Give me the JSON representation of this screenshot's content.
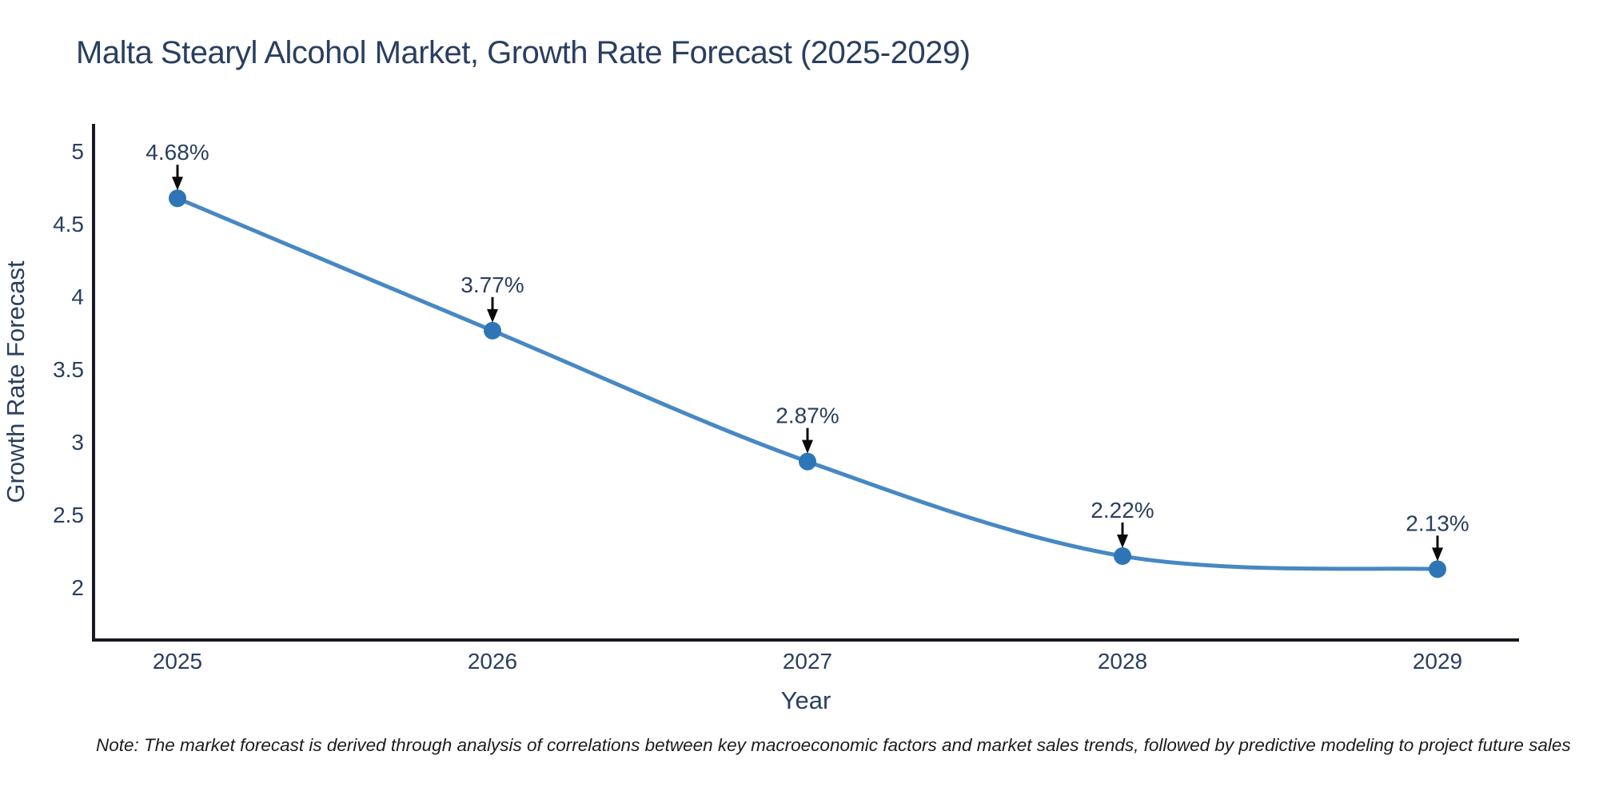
{
  "note": "Note: The market forecast is derived through analysis of correlations between key macroeconomic factors and market sales trends, followed by predictive modeling to project future sales",
  "chart_data": {
    "type": "line",
    "title": "Malta Stearyl Alcohol Market, Growth Rate Forecast (2025-2029)",
    "xlabel": "Year",
    "ylabel": "Growth Rate Forecast",
    "categories": [
      "2025",
      "2026",
      "2027",
      "2028",
      "2029"
    ],
    "values": [
      4.68,
      3.77,
      2.87,
      2.22,
      2.13
    ],
    "point_labels": [
      "4.68%",
      "3.77%",
      "2.87%",
      "2.22%",
      "2.13%"
    ],
    "y_ticks": [
      2,
      2.5,
      3,
      3.5,
      4,
      4.5,
      5
    ],
    "ylim": [
      1.643,
      5.192
    ],
    "line_shape": "spline",
    "grid": false,
    "legend": "none",
    "annotations": "value labels with down arrows above each point",
    "colors": {
      "line": "#4788c3",
      "marker": "#2e75b5",
      "axis": "#1a1a24",
      "text": "#2a3f5f",
      "arrow": "#0b0b0b"
    }
  }
}
